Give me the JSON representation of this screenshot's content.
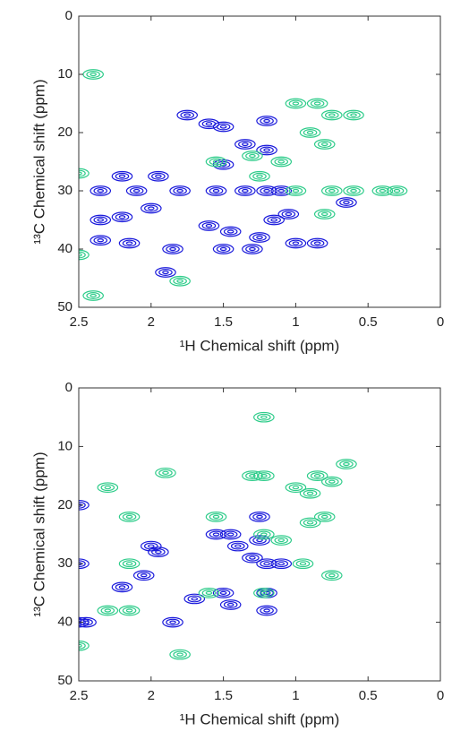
{
  "chart_data": [
    {
      "type": "contour",
      "x_label": "¹H Chemical shift (ppm)",
      "y_label": "¹³C Chemical shift (ppm)",
      "xlim": [
        2.5,
        0
      ],
      "ylim": [
        0,
        50
      ],
      "xticks": [
        2.5,
        2,
        1.5,
        1,
        0.5,
        0
      ],
      "yticks": [
        0,
        10,
        20,
        30,
        40,
        50
      ],
      "series": [
        {
          "color": "#1a1adb",
          "x": [
            2.35,
            2.1,
            1.8,
            1.55,
            1.35,
            1.2,
            1.1,
            2.2,
            1.95,
            1.5,
            1.35,
            1.2,
            1.5,
            1.6,
            1.75,
            1.2,
            2.35,
            2.2,
            2.0,
            2.15,
            2.35,
            1.45,
            1.25,
            1.3,
            1.85,
            1.5,
            1.15,
            1.05,
            0.85,
            0.65,
            1.0,
            1.6,
            1.9
          ],
          "y": [
            30,
            30,
            30,
            30,
            30,
            30,
            30,
            27.5,
            27.5,
            25.5,
            22,
            23,
            19,
            18.5,
            17,
            18,
            35,
            34.5,
            33,
            39,
            38.5,
            37,
            38,
            40,
            40,
            40,
            35,
            34,
            39,
            32,
            39,
            36,
            44
          ]
        },
        {
          "color": "#2ecc8a",
          "x": [
            1.0,
            0.85,
            0.75,
            0.6,
            0.9,
            0.8,
            1.1,
            1.3,
            0.6,
            0.4,
            0.3,
            0.75,
            1.0,
            2.4,
            2.5,
            2.5,
            2.4,
            1.8,
            0.8,
            1.55,
            1.25
          ],
          "y": [
            15,
            15,
            17,
            17,
            20,
            22,
            25,
            24,
            30,
            30,
            30,
            30,
            30,
            10,
            27,
            41,
            48,
            45.5,
            34,
            25,
            27.5
          ]
        }
      ]
    },
    {
      "type": "contour",
      "x_label": "¹H Chemical shift (ppm)",
      "y_label": "¹³C Chemical shift (ppm)",
      "xlim": [
        2.5,
        0
      ],
      "ylim": [
        0,
        50
      ],
      "xticks": [
        2.5,
        2,
        1.5,
        1,
        0.5,
        0
      ],
      "yticks": [
        0,
        10,
        20,
        30,
        40,
        50
      ],
      "series": [
        {
          "color": "#1a1adb",
          "x": [
            2.5,
            2.5,
            2.5,
            2.45,
            2.2,
            2.0,
            2.05,
            1.95,
            1.85,
            1.7,
            1.55,
            1.45,
            1.4,
            1.5,
            1.45,
            1.3,
            1.25,
            1.2,
            1.2,
            1.2,
            1.1,
            1.25
          ],
          "y": [
            20,
            30,
            40,
            40,
            34,
            27,
            32,
            28,
            40,
            36,
            25,
            25,
            27,
            35,
            37,
            29,
            22,
            30,
            35,
            38,
            30,
            26
          ]
        },
        {
          "color": "#2ecc8a",
          "x": [
            1.22,
            1.22,
            1.22,
            1.22,
            2.15,
            2.15,
            2.15,
            2.5,
            2.3,
            2.3,
            1.9,
            1.6,
            1.55,
            1.3,
            1.0,
            0.9,
            0.85,
            0.75,
            0.65,
            1.1,
            0.9,
            0.8,
            0.95,
            0.75,
            1.8
          ],
          "y": [
            5,
            15,
            25,
            35,
            22,
            30,
            38,
            44,
            38,
            17,
            14.5,
            35,
            22,
            15,
            17,
            18,
            15,
            16,
            13,
            26,
            23,
            22,
            30,
            32,
            45.5
          ]
        }
      ]
    }
  ]
}
